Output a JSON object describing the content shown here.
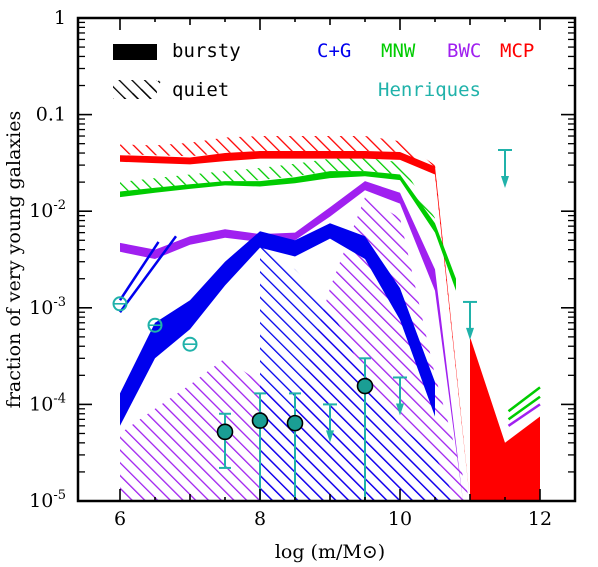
{
  "chart_data": {
    "type": "area",
    "xlabel": "log (m/M⊙)",
    "ylabel": "fraction of very young galaxies",
    "xlim": [
      5.4,
      12.5
    ],
    "ylim_log10": [
      -5,
      0
    ],
    "y_scale": "log",
    "x_ticks": [
      6,
      8,
      10,
      12
    ],
    "y_tick_labels": [
      {
        "exp": 0,
        "text": "1"
      },
      {
        "exp": -1,
        "text": "0.1"
      },
      {
        "exp": -2,
        "text": "10",
        "sup": "-2"
      },
      {
        "exp": -3,
        "text": "10",
        "sup": "-3"
      },
      {
        "exp": -4,
        "text": "10",
        "sup": "-4"
      },
      {
        "exp": -5,
        "text": "10",
        "sup": "-5"
      }
    ],
    "legend": {
      "style_items": [
        {
          "label": "bursty",
          "style": "solid"
        },
        {
          "label": "quiet",
          "style": "hatched"
        }
      ],
      "models": [
        {
          "label": "C+G",
          "color": "#0000ee"
        },
        {
          "label": "MNW",
          "color": "#00cc00"
        },
        {
          "label": "BWC",
          "color": "#a020f0"
        },
        {
          "label": "MCP",
          "color": "#ff0000"
        }
      ],
      "henriques": {
        "label": "Henriques",
        "color": "#20b2aa"
      }
    },
    "series": [
      {
        "name": "MCP",
        "mode": "bursty",
        "color": "#ff0000",
        "x": [
          6,
          6.5,
          7,
          7.5,
          8,
          8.5,
          9,
          9.5,
          10,
          10.5,
          11
        ],
        "lo": [
          0.0325,
          0.0315,
          0.0305,
          0.033,
          0.035,
          0.035,
          0.035,
          0.035,
          0.034,
          0.024,
          1e-05
        ],
        "hi": [
          0.038,
          0.037,
          0.036,
          0.04,
          0.042,
          0.042,
          0.042,
          0.042,
          0.041,
          0.029,
          1e-05
        ]
      },
      {
        "name": "MCP",
        "mode": "bursty",
        "color": "#ff0000",
        "x": [
          11,
          11.5,
          12
        ],
        "lo": [
          1e-05,
          1e-05,
          1e-05
        ],
        "hi": [
          0.0005,
          4e-05,
          7.5e-05
        ]
      },
      {
        "name": "MNW",
        "mode": "bursty",
        "color": "#00cc00",
        "x": [
          6,
          6.5,
          7,
          7.5,
          8,
          8.5,
          9,
          9.5,
          10,
          10.5,
          10.8
        ],
        "lo": [
          0.014,
          0.0155,
          0.017,
          0.0185,
          0.018,
          0.0195,
          0.022,
          0.023,
          0.021,
          0.006,
          0.0015
        ],
        "hi": [
          0.016,
          0.0175,
          0.019,
          0.0205,
          0.0205,
          0.0225,
          0.026,
          0.026,
          0.024,
          0.0075,
          0.002
        ]
      },
      {
        "name": "BWC",
        "mode": "bursty",
        "color": "#a020f0",
        "x": [
          6,
          6.5,
          7,
          7.5,
          8,
          8.5,
          9,
          9.5,
          10,
          10.5,
          10.9
        ],
        "lo": [
          0.0038,
          0.0032,
          0.0045,
          0.0053,
          0.0048,
          0.005,
          0.0088,
          0.0165,
          0.012,
          0.0015,
          1e-05
        ],
        "hi": [
          0.0047,
          0.004,
          0.0055,
          0.0065,
          0.0058,
          0.006,
          0.011,
          0.0205,
          0.0155,
          0.0025,
          1e-05
        ]
      },
      {
        "name": "C+G",
        "mode": "bursty",
        "color": "#0000ee",
        "x": [
          6,
          6.5,
          7,
          7.5,
          8,
          8.5,
          9,
          9.5,
          10,
          10.5
        ],
        "lo": [
          6e-05,
          0.0003,
          0.0006,
          0.0017,
          0.0042,
          0.0034,
          0.0052,
          0.0032,
          0.00075,
          7.5e-05
        ],
        "hi": [
          0.00013,
          0.0007,
          0.0012,
          0.003,
          0.0062,
          0.005,
          0.0075,
          0.0055,
          0.0016,
          0.00017
        ]
      },
      {
        "name": "MCP",
        "mode": "quiet",
        "color": "#ff0000",
        "x": [
          6,
          6.5,
          7,
          7.5,
          8,
          8.5,
          9,
          9.5,
          10,
          10.5,
          11
        ],
        "lo": [
          0.039,
          0.038,
          0.037,
          0.04,
          0.042,
          0.042,
          0.042,
          0.042,
          0.041,
          0.023,
          1e-05
        ],
        "hi": [
          0.049,
          0.048,
          0.051,
          0.058,
          0.06,
          0.06,
          0.06,
          0.06,
          0.053,
          0.03,
          1e-05
        ]
      },
      {
        "name": "MNW",
        "mode": "quiet",
        "color": "#00cc00",
        "x": [
          6,
          6.5,
          7,
          7.5,
          8,
          8.5,
          9,
          9.5,
          10,
          10.5
        ],
        "lo": [
          0.016,
          0.017,
          0.019,
          0.02,
          0.021,
          0.023,
          0.026,
          0.026,
          0.024,
          0.0065
        ],
        "hi": [
          0.02,
          0.022,
          0.024,
          0.026,
          0.028,
          0.031,
          0.035,
          0.036,
          0.032,
          0.0085
        ]
      },
      {
        "name": "BWC",
        "mode": "quiet",
        "color": "#a020f0",
        "x": [
          6,
          6.5,
          7,
          7.5,
          8,
          8.5,
          9,
          9.5,
          10,
          10.5,
          11
        ],
        "lo": [
          1e-05,
          1e-05,
          1e-05,
          1e-05,
          1e-05,
          1e-05,
          1e-05,
          1e-05,
          1e-05,
          1e-05,
          1e-05
        ],
        "hi": [
          5e-05,
          9e-05,
          0.00016,
          0.0003,
          0.00017,
          9e-05,
          0.0016,
          0.014,
          0.0085,
          0.0002,
          1e-05
        ]
      },
      {
        "name": "C+G",
        "mode": "quiet",
        "color": "#0000ee",
        "x": [
          8,
          8.5,
          9,
          9.5,
          10,
          10.5,
          10.8
        ],
        "lo": [
          1e-05,
          1e-05,
          1e-05,
          1e-05,
          1e-05,
          1e-05,
          1e-05
        ],
        "hi": [
          0.0045,
          0.0025,
          0.001,
          0.0002,
          6e-05,
          3e-05,
          1e-05
        ]
      }
    ],
    "quiet_lines": [
      {
        "name": "C+G",
        "color": "#0000ee",
        "segments": [
          {
            "x1": 6.0,
            "y1": 0.0012,
            "x2": 6.55,
            "y2": 0.0048
          },
          {
            "x1": 6.0,
            "y1": 0.0009,
            "x2": 6.8,
            "y2": 0.0055
          }
        ]
      },
      {
        "name": "MNW",
        "color": "#00cc00",
        "segments": [
          {
            "x1": 11.55,
            "y1": 8.5e-05,
            "x2": 12.0,
            "y2": 0.00015
          },
          {
            "x1": 11.55,
            "y1": 7e-05,
            "x2": 12.0,
            "y2": 0.00012
          }
        ]
      },
      {
        "name": "BWC",
        "color": "#a020f0",
        "segments": [
          {
            "x1": 11.55,
            "y1": 6e-05,
            "x2": 12.0,
            "y2": 0.0001
          }
        ]
      }
    ],
    "henriques_points": [
      {
        "x": 7.5,
        "y": 5.2e-05,
        "lo": 2.2e-05,
        "hi": 8e-05,
        "filled": true
      },
      {
        "x": 8.0,
        "y": 6.8e-05,
        "lo": 1e-05,
        "hi": 0.00013,
        "filled": true
      },
      {
        "x": 8.5,
        "y": 6.4e-05,
        "lo": 1e-05,
        "hi": 0.00013,
        "filled": true
      },
      {
        "x": 9.5,
        "y": 0.000155,
        "lo": 1e-05,
        "hi": 0.0003,
        "filled": true
      },
      {
        "x": 6.0,
        "y": 0.0011,
        "lo": 0.0011,
        "hi": 0.0011,
        "filled": false
      },
      {
        "x": 6.5,
        "y": 0.00066,
        "lo": 0.00066,
        "hi": 0.00066,
        "filled": false
      },
      {
        "x": 7.0,
        "y": 0.00042,
        "lo": 0.00042,
        "hi": 0.00042,
        "filled": false
      }
    ],
    "henriques_upper_limits": [
      {
        "x": 9.0,
        "y": 0.0001
      },
      {
        "x": 10.0,
        "y": 0.00019
      },
      {
        "x": 11.0,
        "y": 0.00115
      },
      {
        "x": 11.5,
        "y": 0.043
      }
    ]
  }
}
